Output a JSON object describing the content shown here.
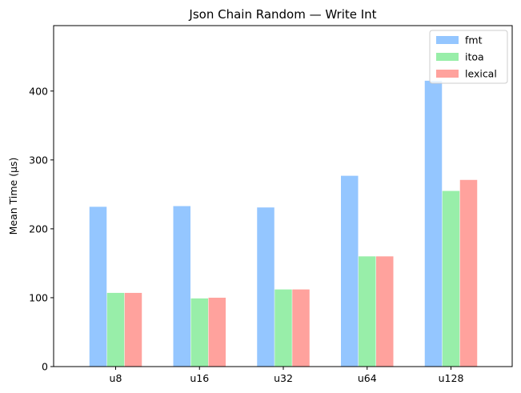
{
  "chart_data": {
    "type": "bar",
    "title": "Json Chain Random — Write Int",
    "xlabel": "",
    "ylabel": "Mean Time (µs)",
    "categories": [
      "u8",
      "u16",
      "u32",
      "u64",
      "u128"
    ],
    "series": [
      {
        "name": "fmt",
        "color": "#94c6ff",
        "values": [
          232,
          233,
          231,
          277,
          415
        ]
      },
      {
        "name": "itoa",
        "color": "#98eea9",
        "values": [
          107,
          99,
          112,
          160,
          255
        ]
      },
      {
        "name": "lexical",
        "color": "#ffa29d",
        "values": [
          107,
          100,
          112,
          160,
          271
        ]
      }
    ],
    "ylim": [
      0,
      495
    ],
    "yticks": [
      0,
      100,
      200,
      300,
      400
    ],
    "grid": false,
    "legend_position": "top-right"
  }
}
